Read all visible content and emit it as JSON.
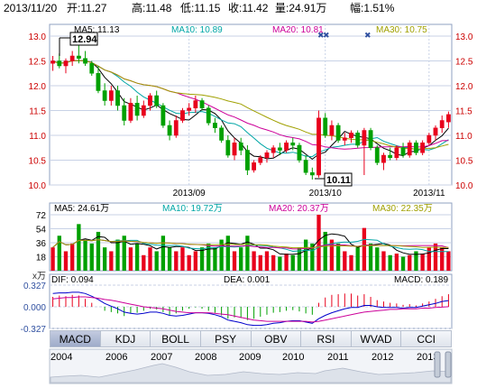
{
  "header": {
    "date": "2013/11/20",
    "open": "开:11.27",
    "high": "高:11.48",
    "low": "低:11.15",
    "close": "收:11.42",
    "volume": "量:24.91万",
    "change": "幅:1.51%"
  },
  "colors": {
    "up": "#e8001c",
    "down": "#00a000",
    "ma5": "#000000",
    "ma10": "#00a6a6",
    "ma20": "#cc0099",
    "ma30": "#a0a000",
    "grid": "#c8d2e6"
  },
  "price_panel": {
    "legend": [
      {
        "label": "MA5: 11.13",
        "color": "#000000"
      },
      {
        "label": "MA10: 10.89",
        "color": "#00a6a6"
      },
      {
        "label": "MA20: 10.81",
        "color": "#cc0099"
      },
      {
        "label": "MA30: 10.75",
        "color": "#a0a000"
      }
    ],
    "y_ticks": [
      "13.0",
      "12.5",
      "12.0",
      "11.5",
      "11.0",
      "10.5",
      "10.0"
    ],
    "x_ticks": [
      "2013/09",
      "2013/10",
      "2013/11"
    ],
    "high_label": "12.94",
    "low_label": "10.11"
  },
  "volume_panel": {
    "legend": [
      {
        "label": "MA5: 24.61万",
        "color": "#000000"
      },
      {
        "label": "MA10: 19.72万",
        "color": "#00a6a6"
      },
      {
        "label": "MA20: 20.37万",
        "color": "#cc0099"
      },
      {
        "label": "MA30: 22.35万",
        "color": "#a0a000"
      }
    ],
    "y_ticks": [
      "72",
      "54",
      "36",
      "18"
    ],
    "unit_label": "x万"
  },
  "macd_panel": {
    "dif_label": "DIF: 0.094",
    "dea_label": "DEA: 0.001",
    "macd_label": "MACD: 0.189",
    "y_ticks": [
      "0.327",
      "0.000",
      "-0.327"
    ]
  },
  "tabs": [
    "MACD",
    "KDJ",
    "BOLL",
    "PSY",
    "OBV",
    "RSI",
    "WVAD",
    "CCI"
  ],
  "timeline": {
    "years": [
      "2004",
      "2006",
      "2007",
      "2008",
      "2009",
      "2010",
      "2011",
      "2012",
      "2013"
    ]
  },
  "chart_data": {
    "type": "candlestick",
    "ylim": [
      10.0,
      13.0
    ],
    "candles": [
      {
        "o": 12.45,
        "h": 12.6,
        "l": 12.3,
        "c": 12.5
      },
      {
        "o": 12.5,
        "h": 12.65,
        "l": 12.35,
        "c": 12.4
      },
      {
        "o": 12.4,
        "h": 12.55,
        "l": 12.25,
        "c": 12.5
      },
      {
        "o": 12.5,
        "h": 12.7,
        "l": 12.4,
        "c": 12.6
      },
      {
        "o": 12.6,
        "h": 12.94,
        "l": 12.45,
        "c": 12.55
      },
      {
        "o": 12.55,
        "h": 12.7,
        "l": 12.4,
        "c": 12.45
      },
      {
        "o": 12.45,
        "h": 12.5,
        "l": 12.2,
        "c": 12.25
      },
      {
        "o": 12.25,
        "h": 12.4,
        "l": 11.85,
        "c": 11.9
      },
      {
        "o": 11.9,
        "h": 12.05,
        "l": 11.6,
        "c": 11.7
      },
      {
        "o": 11.7,
        "h": 12.0,
        "l": 11.6,
        "c": 11.9
      },
      {
        "o": 11.9,
        "h": 12.0,
        "l": 11.5,
        "c": 11.6
      },
      {
        "o": 11.6,
        "h": 11.75,
        "l": 11.2,
        "c": 11.3
      },
      {
        "o": 11.3,
        "h": 11.75,
        "l": 11.25,
        "c": 11.65
      },
      {
        "o": 11.65,
        "h": 11.8,
        "l": 11.3,
        "c": 11.4
      },
      {
        "o": 11.4,
        "h": 11.7,
        "l": 11.35,
        "c": 11.6
      },
      {
        "o": 11.6,
        "h": 11.85,
        "l": 11.5,
        "c": 11.8
      },
      {
        "o": 11.8,
        "h": 11.9,
        "l": 11.55,
        "c": 11.6
      },
      {
        "o": 11.6,
        "h": 11.65,
        "l": 11.15,
        "c": 11.2
      },
      {
        "o": 11.2,
        "h": 11.3,
        "l": 10.9,
        "c": 11.0
      },
      {
        "o": 11.0,
        "h": 11.4,
        "l": 10.95,
        "c": 11.3
      },
      {
        "o": 11.3,
        "h": 11.55,
        "l": 11.25,
        "c": 11.5
      },
      {
        "o": 11.5,
        "h": 11.65,
        "l": 11.4,
        "c": 11.55
      },
      {
        "o": 11.55,
        "h": 11.8,
        "l": 11.45,
        "c": 11.7
      },
      {
        "o": 11.7,
        "h": 11.75,
        "l": 11.5,
        "c": 11.55
      },
      {
        "o": 11.55,
        "h": 11.6,
        "l": 11.2,
        "c": 11.25
      },
      {
        "o": 11.25,
        "h": 11.35,
        "l": 11.05,
        "c": 11.15
      },
      {
        "o": 11.15,
        "h": 11.2,
        "l": 10.85,
        "c": 10.9
      },
      {
        "o": 10.9,
        "h": 11.0,
        "l": 10.55,
        "c": 10.6
      },
      {
        "o": 10.6,
        "h": 10.95,
        "l": 10.5,
        "c": 10.85
      },
      {
        "o": 10.85,
        "h": 10.95,
        "l": 10.6,
        "c": 10.7
      },
      {
        "o": 10.7,
        "h": 10.8,
        "l": 10.2,
        "c": 10.3
      },
      {
        "o": 10.3,
        "h": 10.5,
        "l": 10.25,
        "c": 10.45
      },
      {
        "o": 10.45,
        "h": 10.6,
        "l": 10.4,
        "c": 10.55
      },
      {
        "o": 10.55,
        "h": 10.7,
        "l": 10.45,
        "c": 10.65
      },
      {
        "o": 10.65,
        "h": 10.8,
        "l": 10.55,
        "c": 10.75
      },
      {
        "o": 10.75,
        "h": 10.85,
        "l": 10.6,
        "c": 10.7
      },
      {
        "o": 10.7,
        "h": 10.9,
        "l": 10.65,
        "c": 10.85
      },
      {
        "o": 10.85,
        "h": 10.95,
        "l": 10.7,
        "c": 10.8
      },
      {
        "o": 10.8,
        "h": 10.85,
        "l": 10.45,
        "c": 10.5
      },
      {
        "o": 10.5,
        "h": 10.6,
        "l": 10.2,
        "c": 10.25
      },
      {
        "o": 10.25,
        "h": 10.35,
        "l": 10.11,
        "c": 10.2
      },
      {
        "o": 10.2,
        "h": 11.5,
        "l": 10.15,
        "c": 11.35
      },
      {
        "o": 11.35,
        "h": 11.45,
        "l": 10.95,
        "c": 11.0
      },
      {
        "o": 11.0,
        "h": 11.3,
        "l": 10.9,
        "c": 11.2
      },
      {
        "o": 11.2,
        "h": 11.25,
        "l": 10.85,
        "c": 10.9
      },
      {
        "o": 10.9,
        "h": 11.05,
        "l": 10.8,
        "c": 10.95
      },
      {
        "o": 10.95,
        "h": 11.1,
        "l": 10.85,
        "c": 11.05
      },
      {
        "o": 11.05,
        "h": 11.1,
        "l": 10.75,
        "c": 10.8
      },
      {
        "o": 10.8,
        "h": 11.15,
        "l": 10.2,
        "c": 11.1
      },
      {
        "o": 11.1,
        "h": 11.15,
        "l": 10.7,
        "c": 10.75
      },
      {
        "o": 10.75,
        "h": 10.8,
        "l": 10.4,
        "c": 10.45
      },
      {
        "o": 10.45,
        "h": 10.65,
        "l": 10.3,
        "c": 10.6
      },
      {
        "o": 10.6,
        "h": 10.75,
        "l": 10.5,
        "c": 10.55
      },
      {
        "o": 10.55,
        "h": 10.8,
        "l": 10.5,
        "c": 10.75
      },
      {
        "o": 10.75,
        "h": 10.85,
        "l": 10.55,
        "c": 10.6
      },
      {
        "o": 10.6,
        "h": 10.9,
        "l": 10.55,
        "c": 10.85
      },
      {
        "o": 10.85,
        "h": 10.9,
        "l": 10.6,
        "c": 10.65
      },
      {
        "o": 10.65,
        "h": 10.9,
        "l": 10.6,
        "c": 10.85
      },
      {
        "o": 10.85,
        "h": 11.05,
        "l": 10.8,
        "c": 11.0
      },
      {
        "o": 11.0,
        "h": 11.2,
        "l": 10.9,
        "c": 11.15
      },
      {
        "o": 11.15,
        "h": 11.4,
        "l": 11.05,
        "c": 11.3
      },
      {
        "o": 11.27,
        "h": 11.48,
        "l": 11.15,
        "c": 11.42
      }
    ],
    "volume": [
      30,
      45,
      25,
      35,
      60,
      40,
      35,
      50,
      30,
      25,
      40,
      45,
      30,
      35,
      20,
      30,
      25,
      45,
      30,
      25,
      30,
      20,
      25,
      30,
      35,
      30,
      40,
      45,
      25,
      30,
      45,
      25,
      20,
      25,
      20,
      18,
      22,
      20,
      30,
      40,
      35,
      72,
      50,
      40,
      35,
      25,
      20,
      30,
      55,
      35,
      30,
      25,
      20,
      22,
      18,
      20,
      25,
      22,
      30,
      35,
      30,
      25
    ],
    "macd_hist": [
      0.15,
      0.17,
      0.16,
      0.18,
      0.17,
      0.12,
      0.06,
      0.0,
      -0.06,
      -0.08,
      -0.1,
      -0.14,
      -0.1,
      -0.09,
      -0.06,
      -0.03,
      -0.04,
      -0.08,
      -0.12,
      -0.1,
      -0.06,
      -0.03,
      -0.01,
      -0.03,
      -0.06,
      -0.09,
      -0.13,
      -0.18,
      -0.16,
      -0.17,
      -0.2,
      -0.18,
      -0.15,
      -0.12,
      -0.09,
      -0.08,
      -0.06,
      -0.05,
      -0.07,
      -0.1,
      -0.12,
      0.06,
      0.14,
      0.18,
      0.19,
      0.2,
      0.2,
      0.17,
      0.19,
      0.15,
      0.1,
      0.08,
      0.06,
      0.05,
      0.03,
      0.04,
      0.02,
      0.05,
      0.08,
      0.12,
      0.16,
      0.19
    ],
    "dif": [
      0.2,
      0.21,
      0.21,
      0.22,
      0.22,
      0.2,
      0.16,
      0.11,
      0.05,
      0.01,
      -0.03,
      -0.08,
      -0.1,
      -0.11,
      -0.1,
      -0.08,
      -0.08,
      -0.1,
      -0.13,
      -0.14,
      -0.13,
      -0.11,
      -0.09,
      -0.09,
      -0.1,
      -0.12,
      -0.15,
      -0.2,
      -0.22,
      -0.24,
      -0.27,
      -0.28,
      -0.28,
      -0.27,
      -0.25,
      -0.24,
      -0.22,
      -0.21,
      -0.21,
      -0.23,
      -0.25,
      -0.18,
      -0.13,
      -0.09,
      -0.06,
      -0.03,
      -0.01,
      -0.01,
      0.02,
      0.02,
      0.0,
      -0.01,
      -0.01,
      -0.01,
      -0.02,
      -0.01,
      -0.01,
      0.01,
      0.03,
      0.05,
      0.08,
      0.094
    ],
    "dea": [
      0.12,
      0.13,
      0.14,
      0.14,
      0.15,
      0.15,
      0.14,
      0.13,
      0.11,
      0.1,
      0.08,
      0.06,
      0.04,
      0.02,
      0.0,
      -0.01,
      -0.02,
      -0.03,
      -0.05,
      -0.07,
      -0.08,
      -0.09,
      -0.09,
      -0.09,
      -0.09,
      -0.1,
      -0.11,
      -0.12,
      -0.14,
      -0.16,
      -0.18,
      -0.2,
      -0.21,
      -0.22,
      -0.22,
      -0.22,
      -0.22,
      -0.22,
      -0.22,
      -0.22,
      -0.23,
      -0.22,
      -0.2,
      -0.18,
      -0.16,
      -0.14,
      -0.12,
      -0.1,
      -0.08,
      -0.07,
      -0.06,
      -0.05,
      -0.04,
      -0.04,
      -0.03,
      -0.03,
      -0.03,
      -0.02,
      -0.02,
      -0.01,
      -0.005,
      0.001
    ]
  }
}
